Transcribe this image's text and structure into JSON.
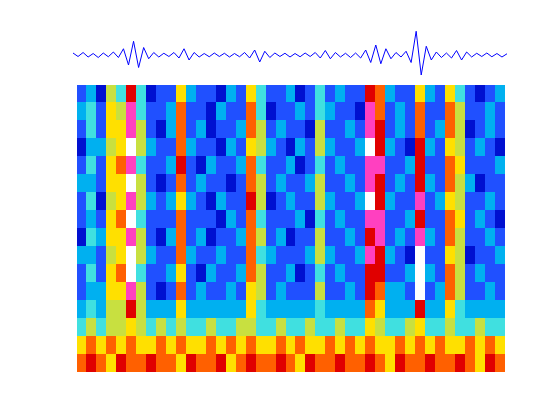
{
  "chart_data": [
    {
      "type": "line",
      "color": "#0000ff",
      "tick_labels": false,
      "grid": false,
      "xlim": [
        0,
        86
      ],
      "ylim": [
        -1,
        1
      ],
      "values": [
        0.08,
        -0.06,
        0.1,
        -0.08,
        0.06,
        -0.1,
        0.08,
        -0.07,
        0.12,
        -0.1,
        0.25,
        -0.4,
        0.55,
        -0.5,
        0.3,
        -0.15,
        0.1,
        -0.08,
        0.07,
        -0.06,
        0.1,
        -0.12,
        0.25,
        -0.2,
        0.1,
        -0.08,
        0.06,
        -0.07,
        0.08,
        -0.06,
        0.07,
        -0.08,
        0.06,
        -0.07,
        0.1,
        -0.12,
        0.2,
        -0.28,
        0.15,
        -0.1,
        0.08,
        -0.06,
        0.07,
        -0.08,
        0.06,
        -0.07,
        0.08,
        -0.06,
        0.1,
        -0.12,
        0.18,
        -0.15,
        0.1,
        -0.08,
        0.07,
        -0.1,
        0.08,
        -0.12,
        0.2,
        -0.3,
        0.4,
        -0.35,
        0.25,
        -0.15,
        0.1,
        -0.08,
        0.15,
        -0.3,
        0.95,
        -0.8,
        0.35,
        -0.2,
        0.12,
        -0.1,
        0.08,
        -0.12,
        0.18,
        -0.2,
        0.12,
        -0.08,
        0.07,
        -0.06,
        0.08,
        -0.07,
        0.06,
        -0.08,
        0.05
      ]
    },
    {
      "type": "heatmap",
      "tick_labels": false,
      "grid": false,
      "color_range": [
        0,
        10
      ],
      "cells": [
        [
          2,
          3,
          1,
          5,
          4,
          8,
          4,
          1,
          2,
          2,
          6,
          3,
          2,
          2,
          1,
          3,
          2,
          6,
          4,
          2,
          2,
          3,
          1,
          2,
          4,
          2,
          3,
          2,
          2,
          8,
          7,
          3,
          2,
          2,
          6,
          3,
          2,
          6,
          4,
          2,
          1,
          2,
          3
        ],
        [
          3,
          4,
          2,
          6,
          5,
          9,
          4,
          2,
          2,
          3,
          7,
          2,
          2,
          1,
          3,
          2,
          2,
          7,
          4,
          1,
          2,
          2,
          3,
          2,
          4,
          3,
          2,
          2,
          1,
          9,
          7,
          2,
          3,
          2,
          7,
          2,
          2,
          7,
          5,
          2,
          2,
          3,
          2
        ],
        [
          2,
          4,
          2,
          6,
          6,
          9,
          5,
          2,
          1,
          3,
          7,
          2,
          3,
          1,
          2,
          2,
          3,
          7,
          5,
          2,
          3,
          2,
          2,
          1,
          5,
          2,
          2,
          3,
          2,
          9,
          8,
          2,
          3,
          2,
          7,
          2,
          3,
          7,
          5,
          1,
          2,
          3,
          2
        ],
        [
          1,
          3,
          3,
          5,
          6,
          10,
          5,
          3,
          2,
          2,
          7,
          3,
          2,
          2,
          1,
          3,
          2,
          6,
          5,
          3,
          2,
          1,
          3,
          2,
          5,
          3,
          2,
          2,
          3,
          10,
          8,
          3,
          2,
          1,
          8,
          3,
          2,
          6,
          5,
          2,
          3,
          2,
          1
        ],
        [
          2,
          4,
          2,
          6,
          7,
          9,
          4,
          2,
          2,
          3,
          8,
          2,
          1,
          3,
          2,
          2,
          3,
          7,
          4,
          2,
          2,
          3,
          1,
          2,
          4,
          2,
          3,
          2,
          2,
          9,
          9,
          2,
          2,
          3,
          8,
          2,
          2,
          7,
          6,
          2,
          2,
          2,
          3
        ],
        [
          3,
          3,
          2,
          6,
          6,
          10,
          5,
          2,
          1,
          2,
          7,
          2,
          3,
          2,
          2,
          1,
          2,
          7,
          5,
          2,
          3,
          2,
          2,
          3,
          5,
          2,
          2,
          3,
          2,
          9,
          8,
          2,
          3,
          2,
          8,
          3,
          2,
          7,
          5,
          3,
          1,
          2,
          2
        ],
        [
          2,
          4,
          1,
          5,
          6,
          9,
          5,
          3,
          2,
          3,
          6,
          3,
          2,
          1,
          3,
          2,
          2,
          8,
          5,
          1,
          2,
          3,
          2,
          2,
          5,
          3,
          2,
          2,
          3,
          10,
          8,
          3,
          2,
          2,
          9,
          2,
          3,
          6,
          5,
          2,
          2,
          3,
          2
        ],
        [
          2,
          3,
          2,
          6,
          7,
          10,
          4,
          2,
          2,
          2,
          7,
          2,
          2,
          2,
          1,
          3,
          2,
          7,
          4,
          2,
          2,
          2,
          3,
          1,
          4,
          2,
          3,
          2,
          2,
          9,
          9,
          2,
          2,
          3,
          8,
          2,
          2,
          7,
          6,
          2,
          3,
          2,
          1
        ],
        [
          1,
          4,
          3,
          6,
          6,
          9,
          5,
          2,
          1,
          3,
          7,
          2,
          3,
          1,
          2,
          2,
          3,
          7,
          5,
          2,
          3,
          1,
          2,
          2,
          5,
          2,
          2,
          3,
          2,
          8,
          9,
          2,
          3,
          2,
          9,
          3,
          2,
          7,
          5,
          2,
          2,
          3,
          2
        ],
        [
          3,
          3,
          2,
          5,
          6,
          10,
          5,
          3,
          2,
          2,
          7,
          3,
          2,
          2,
          3,
          2,
          2,
          7,
          4,
          3,
          2,
          2,
          2,
          3,
          5,
          3,
          2,
          2,
          3,
          9,
          8,
          3,
          2,
          1,
          10,
          2,
          2,
          6,
          5,
          1,
          2,
          2,
          3
        ],
        [
          2,
          4,
          2,
          6,
          7,
          10,
          4,
          2,
          2,
          3,
          6,
          2,
          1,
          3,
          2,
          2,
          3,
          7,
          5,
          2,
          2,
          3,
          1,
          2,
          4,
          2,
          3,
          2,
          2,
          8,
          8,
          2,
          2,
          3,
          10,
          3,
          2,
          7,
          5,
          2,
          3,
          2,
          2
        ],
        [
          2,
          3,
          3,
          6,
          6,
          9,
          5,
          2,
          1,
          2,
          7,
          2,
          3,
          2,
          2,
          3,
          2,
          6,
          5,
          2,
          3,
          2,
          2,
          2,
          5,
          2,
          2,
          3,
          2,
          8,
          7,
          3,
          3,
          2,
          10,
          2,
          3,
          7,
          5,
          2,
          2,
          3,
          2
        ],
        [
          3,
          4,
          3,
          5,
          5,
          8,
          5,
          3,
          3,
          3,
          6,
          3,
          3,
          3,
          3,
          3,
          3,
          6,
          4,
          3,
          3,
          3,
          3,
          3,
          4,
          3,
          3,
          3,
          3,
          7,
          6,
          3,
          3,
          3,
          8,
          3,
          3,
          6,
          4,
          3,
          3,
          3,
          3
        ],
        [
          4,
          5,
          4,
          5,
          5,
          6,
          5,
          4,
          5,
          4,
          5,
          4,
          4,
          5,
          4,
          4,
          5,
          5,
          4,
          4,
          5,
          4,
          4,
          5,
          4,
          4,
          5,
          4,
          4,
          6,
          5,
          4,
          4,
          5,
          6,
          4,
          4,
          5,
          4,
          4,
          5,
          4,
          4
        ],
        [
          6,
          7,
          6,
          7,
          6,
          7,
          6,
          6,
          7,
          6,
          7,
          6,
          6,
          7,
          6,
          7,
          6,
          7,
          6,
          6,
          7,
          6,
          7,
          6,
          6,
          7,
          6,
          7,
          6,
          7,
          6,
          6,
          7,
          6,
          7,
          6,
          7,
          6,
          6,
          7,
          6,
          7,
          6
        ],
        [
          7,
          8,
          7,
          6,
          8,
          7,
          7,
          8,
          7,
          7,
          6,
          8,
          7,
          7,
          8,
          6,
          7,
          8,
          7,
          7,
          8,
          7,
          6,
          8,
          7,
          7,
          8,
          7,
          7,
          8,
          7,
          6,
          8,
          7,
          7,
          8,
          7,
          7,
          8,
          7,
          6,
          8,
          7
        ]
      ]
    }
  ]
}
